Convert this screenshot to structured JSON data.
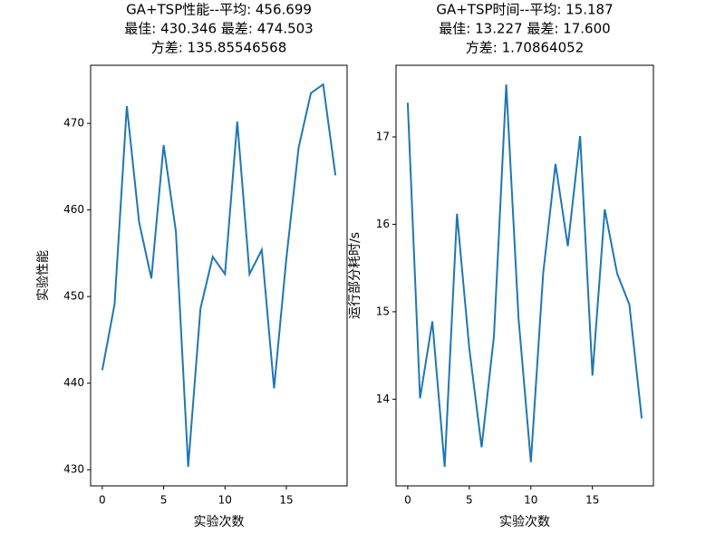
{
  "chart_data": [
    {
      "type": "line",
      "title": [
        "GA+TSP性能--平均: 456.699",
        "最佳: 430.346 最差: 474.503",
        "方差: 135.85546568"
      ],
      "x_label": "实验次数",
      "y_label": "实验性能",
      "x": [
        0,
        1,
        2,
        3,
        4,
        5,
        6,
        7,
        8,
        9,
        10,
        11,
        12,
        13,
        14,
        15,
        16,
        17,
        18,
        19
      ],
      "series": [
        {
          "color": "#1f77b4",
          "values": [
            441.5,
            449.1,
            472.0,
            458.6,
            452.1,
            467.5,
            457.5,
            430.346,
            448.6,
            454.6,
            452.6,
            470.2,
            452.6,
            455.4,
            439.4,
            454.4,
            467.2,
            473.5,
            474.503,
            464.0
          ]
        }
      ],
      "xlim": [
        -0.95,
        19.95
      ],
      "xticks": [
        0,
        5,
        10,
        15
      ],
      "ylim": [
        428.138,
        476.711
      ],
      "yticks": [
        430,
        440,
        450,
        460,
        470
      ]
    },
    {
      "type": "line",
      "title": [
        "GA+TSP时间--平均: 15.187",
        "最佳: 13.227 最差: 17.600",
        "方差: 1.70864052"
      ],
      "x_label": "实验次数",
      "y_label": "运行部分耗时/s",
      "x": [
        0,
        1,
        2,
        3,
        4,
        5,
        6,
        7,
        8,
        9,
        10,
        11,
        12,
        13,
        14,
        15,
        16,
        17,
        18,
        19
      ],
      "series": [
        {
          "color": "#1f77b4",
          "values": [
            17.39,
            14.01,
            14.89,
            13.227,
            16.12,
            14.58,
            13.45,
            14.72,
            17.6,
            14.92,
            13.28,
            15.44,
            16.69,
            15.75,
            17.01,
            14.27,
            16.17,
            15.44,
            15.08,
            13.78
          ]
        }
      ],
      "xlim": [
        -0.95,
        19.95
      ],
      "xticks": [
        0,
        5,
        10,
        15
      ],
      "ylim": [
        13.008,
        17.819
      ],
      "yticks": [
        14,
        15,
        16,
        17
      ]
    }
  ]
}
